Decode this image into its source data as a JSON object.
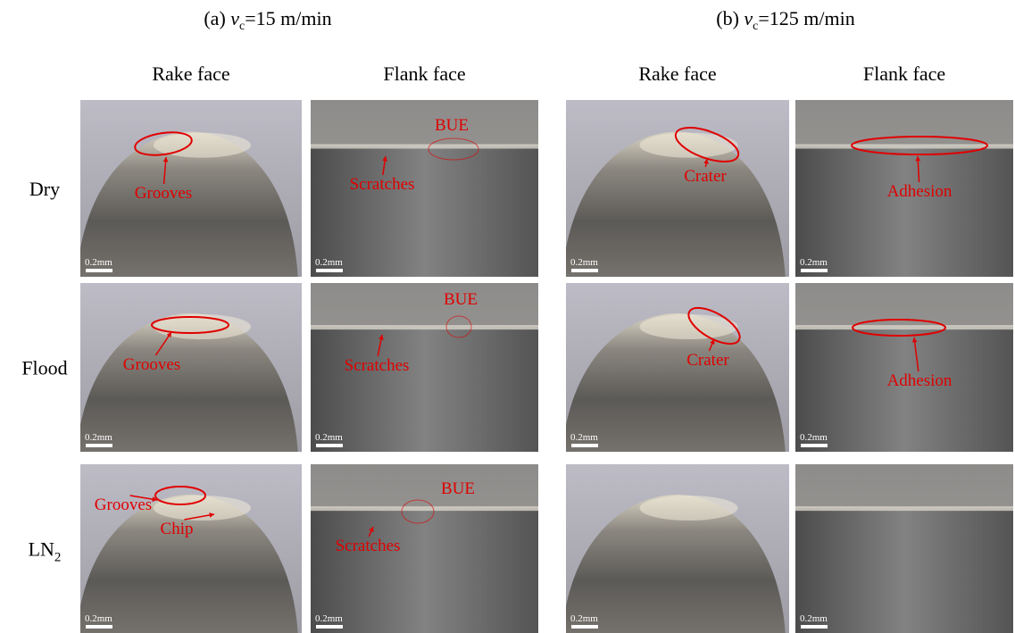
{
  "groups": [
    {
      "prefix": "(a)",
      "symbol": "v",
      "subscript": "c",
      "value": "=15 m/min",
      "columns": [
        "Rake face",
        "Flank face"
      ]
    },
    {
      "prefix": "(b)",
      "symbol": "v",
      "subscript": "c",
      "value": "=125 m/min",
      "columns": [
        "Rake face",
        "Flank face"
      ]
    }
  ],
  "row_labels": [
    {
      "main": "Dry"
    },
    {
      "main": "Flood"
    },
    {
      "main": "LN",
      "subscript": "2"
    }
  ],
  "panels": [
    [
      {
        "annotations": [
          "Grooves"
        ],
        "scale_bar": "0.2mm"
      },
      {
        "annotations": [
          "BUE",
          "Scratches"
        ],
        "scale_bar": "0.2mm"
      },
      {
        "annotations": [
          "Crater"
        ],
        "scale_bar": "0.2mm"
      },
      {
        "annotations": [
          "Adhesion"
        ],
        "scale_bar": "0.2mm"
      }
    ],
    [
      {
        "annotations": [
          "Grooves"
        ],
        "scale_bar": "0.2mm"
      },
      {
        "annotations": [
          "BUE",
          "Scratches"
        ],
        "scale_bar": "0.2mm"
      },
      {
        "annotations": [
          "Crater"
        ],
        "scale_bar": "0.2mm"
      },
      {
        "annotations": [
          "Adhesion"
        ],
        "scale_bar": "0.2mm"
      }
    ],
    [
      {
        "annotations": [
          "Grooves",
          "Chip"
        ],
        "scale_bar": "0.2mm"
      },
      {
        "annotations": [
          "BUE",
          "Scratches"
        ],
        "scale_bar": "0.2mm"
      },
      {
        "annotations": [],
        "scale_bar": "0.2mm"
      },
      {
        "annotations": [],
        "scale_bar": "0.2mm"
      }
    ]
  ]
}
